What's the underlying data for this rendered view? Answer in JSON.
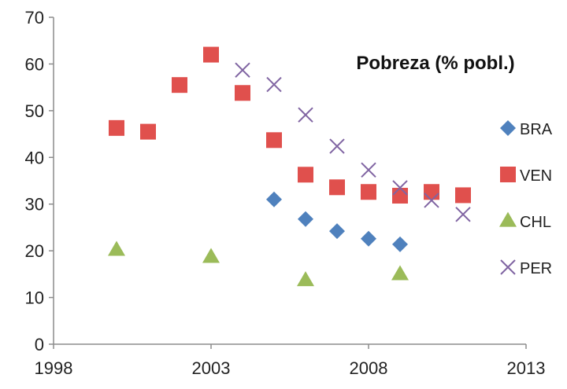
{
  "chart_data": {
    "type": "scatter",
    "title": "Pobreza (% pobl.)",
    "xlabel": "",
    "ylabel": "",
    "xlim": [
      1998,
      2013
    ],
    "ylim": [
      0,
      70
    ],
    "xticks": [
      1998,
      2003,
      2008,
      2013
    ],
    "yticks": [
      0,
      10,
      20,
      30,
      40,
      50,
      60,
      70
    ],
    "grid": false,
    "legend_position": "right",
    "series": [
      {
        "name": "BRA",
        "marker": "diamond",
        "color": "#4F81BD",
        "points": [
          [
            2005,
            31.0
          ],
          [
            2006,
            26.8
          ],
          [
            2007,
            24.2
          ],
          [
            2008,
            22.6
          ],
          [
            2009,
            21.4
          ]
        ]
      },
      {
        "name": "VEN",
        "marker": "square",
        "color": "#E0504D",
        "points": [
          [
            2000,
            46.3
          ],
          [
            2001,
            45.5
          ],
          [
            2002,
            55.5
          ],
          [
            2003,
            62.0
          ],
          [
            2004,
            53.8
          ],
          [
            2005,
            43.7
          ],
          [
            2006,
            36.3
          ],
          [
            2007,
            33.6
          ],
          [
            2008,
            32.6
          ],
          [
            2009,
            31.8
          ],
          [
            2010,
            32.6
          ],
          [
            2011,
            31.9
          ]
        ]
      },
      {
        "name": "CHL",
        "marker": "triangle",
        "color": "#9BBB59",
        "points": [
          [
            2000,
            20.2
          ],
          [
            2003,
            18.7
          ],
          [
            2006,
            13.7
          ],
          [
            2009,
            15.0
          ]
        ]
      },
      {
        "name": "PER",
        "marker": "x",
        "color": "#8064A2",
        "points": [
          [
            2004,
            58.7
          ],
          [
            2005,
            55.6
          ],
          [
            2006,
            49.1
          ],
          [
            2007,
            42.4
          ],
          [
            2008,
            37.3
          ],
          [
            2009,
            33.5
          ],
          [
            2010,
            30.8
          ],
          [
            2011,
            27.8
          ]
        ]
      }
    ]
  }
}
